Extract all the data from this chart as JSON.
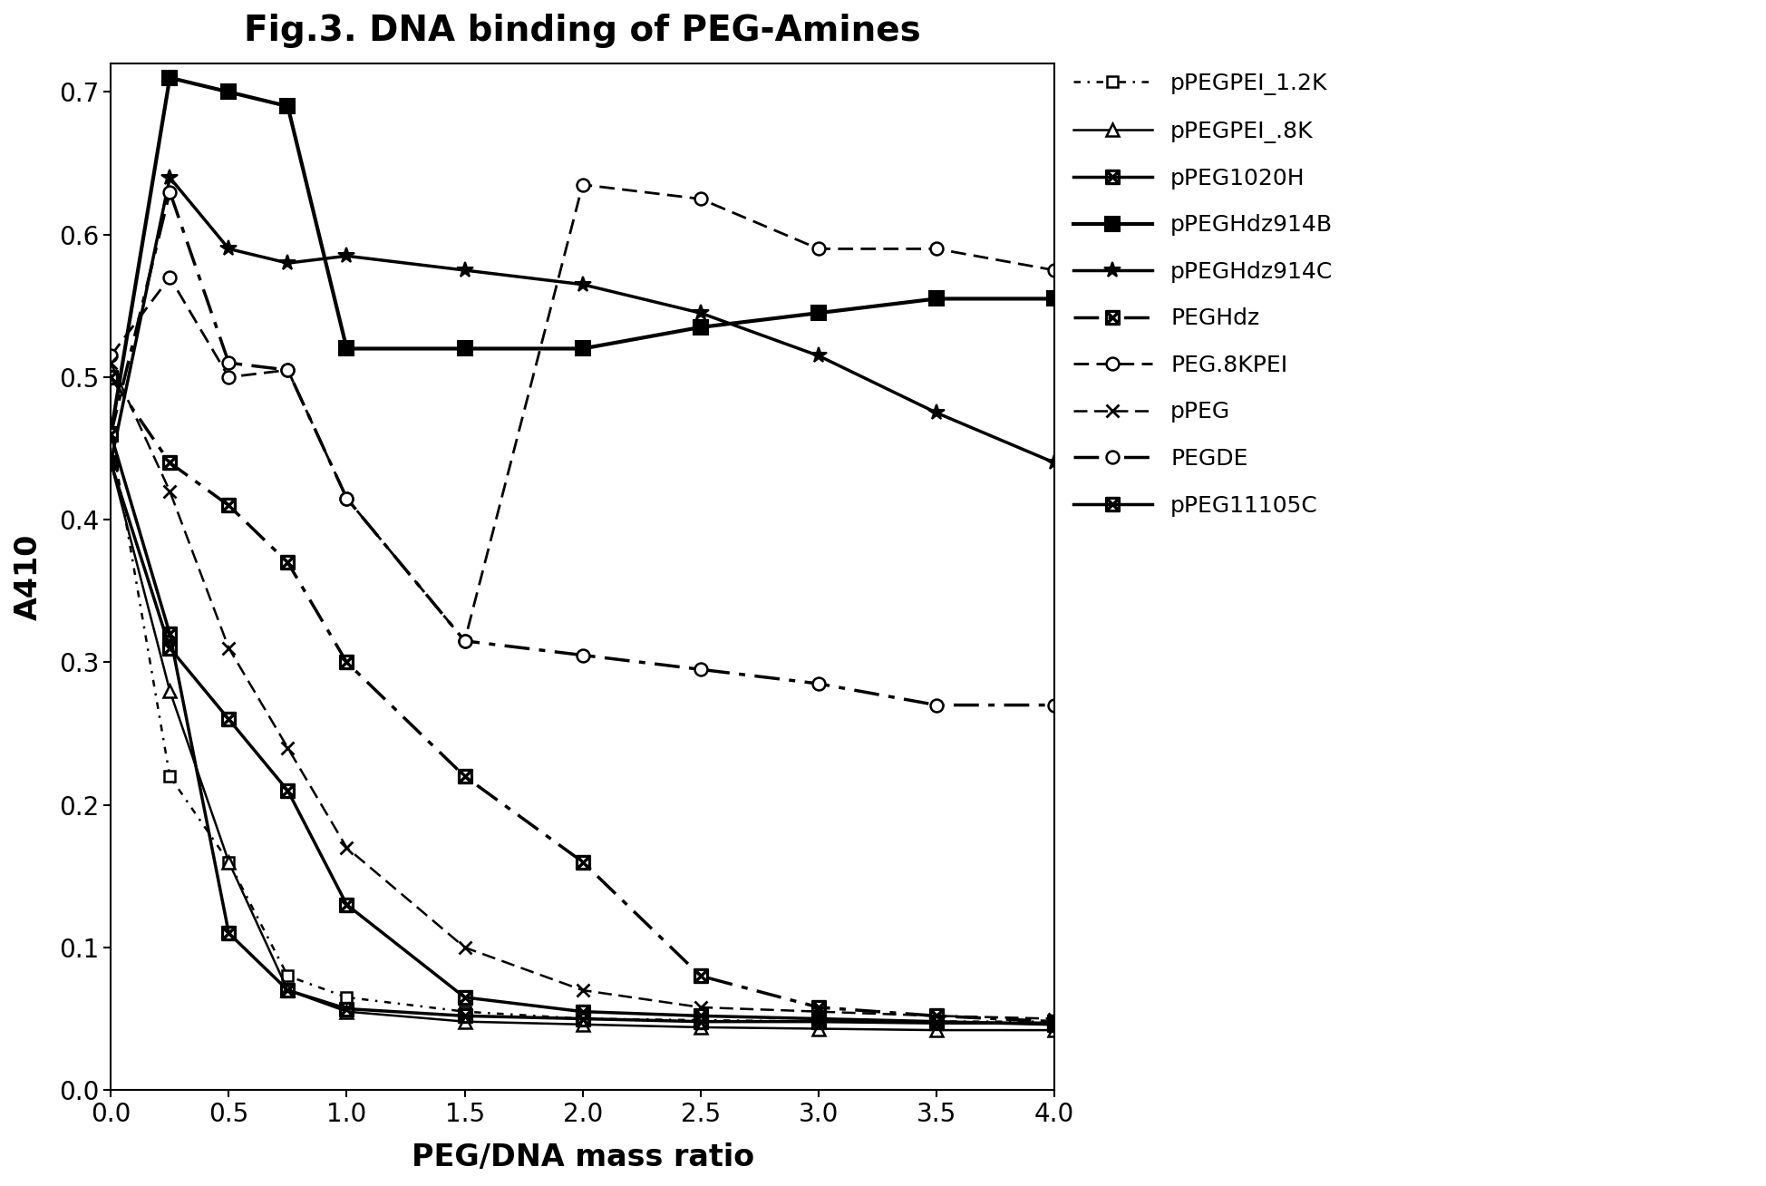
{
  "title": "Fig.3. DNA binding of PEG-Amines",
  "xlabel": "PEG/DNA mass ratio",
  "ylabel": "A410",
  "xlim": [
    0.0,
    4.0
  ],
  "ylim": [
    0.0,
    0.72
  ],
  "yticks": [
    0,
    0.1,
    0.2,
    0.3,
    0.4,
    0.5,
    0.6,
    0.7
  ],
  "xticks": [
    0.0,
    0.5,
    1.0,
    1.5,
    2.0,
    2.5,
    3.0,
    3.5,
    4.0
  ],
  "series": [
    {
      "label": "pPEGPEI_1.2K",
      "linestyle": "dot-dash-short",
      "linewidth": 1.8,
      "marker": "s",
      "ms": 9,
      "mfc": "white",
      "mew": 1.8,
      "x": [
        0.0,
        0.25,
        0.5,
        0.75,
        1.0,
        1.5,
        2.0,
        2.5,
        3.0,
        3.5,
        4.0
      ],
      "y": [
        0.46,
        0.22,
        0.16,
        0.08,
        0.065,
        0.055,
        0.05,
        0.049,
        0.048,
        0.048,
        0.048
      ]
    },
    {
      "label": "pPEGPEI_.8K",
      "linestyle": "solid",
      "linewidth": 1.8,
      "marker": "^",
      "ms": 10,
      "mfc": "white",
      "mew": 1.8,
      "x": [
        0.0,
        0.25,
        0.5,
        0.75,
        1.0,
        1.5,
        2.0,
        2.5,
        3.0,
        3.5,
        4.0
      ],
      "y": [
        0.44,
        0.28,
        0.16,
        0.07,
        0.055,
        0.048,
        0.046,
        0.044,
        0.043,
        0.042,
        0.042
      ]
    },
    {
      "label": "pPEG1020H",
      "linestyle": "solid",
      "linewidth": 2.5,
      "marker": "boxx",
      "ms": 11,
      "mfc": "black",
      "mew": 1.5,
      "x": [
        0.0,
        0.25,
        0.5,
        0.75,
        1.0,
        1.5,
        2.0,
        2.5,
        3.0,
        3.5,
        4.0
      ],
      "y": [
        0.44,
        0.31,
        0.26,
        0.21,
        0.13,
        0.065,
        0.055,
        0.052,
        0.05,
        0.048,
        0.046
      ]
    },
    {
      "label": "pPEGHdz914B",
      "linestyle": "solid",
      "linewidth": 3.0,
      "marker": "s",
      "ms": 11,
      "mfc": "black",
      "mew": 1.5,
      "x": [
        0.0,
        0.25,
        0.5,
        0.75,
        1.0,
        1.5,
        2.0,
        2.5,
        3.0,
        3.5,
        4.0
      ],
      "y": [
        0.46,
        0.71,
        0.7,
        0.69,
        0.52,
        0.52,
        0.52,
        0.535,
        0.545,
        0.555,
        0.555
      ]
    },
    {
      "label": "pPEGHdz914C",
      "linestyle": "solid",
      "linewidth": 2.5,
      "marker": "star",
      "ms": 13,
      "mfc": "black",
      "mew": 1.5,
      "x": [
        0.0,
        0.25,
        0.5,
        0.75,
        1.0,
        1.5,
        2.0,
        2.5,
        3.0,
        3.5,
        4.0
      ],
      "y": [
        0.44,
        0.64,
        0.59,
        0.58,
        0.585,
        0.575,
        0.565,
        0.545,
        0.515,
        0.475,
        0.44
      ]
    },
    {
      "label": "PEGHdz",
      "linestyle": "dashdot",
      "linewidth": 2.5,
      "marker": "boxx",
      "ms": 11,
      "mfc": "black",
      "mew": 1.5,
      "x": [
        0.0,
        0.25,
        0.5,
        0.75,
        1.0,
        1.5,
        2.0,
        2.5,
        3.0,
        3.5,
        4.0
      ],
      "y": [
        0.5,
        0.44,
        0.41,
        0.37,
        0.3,
        0.22,
        0.16,
        0.08,
        0.058,
        0.052,
        0.048
      ]
    },
    {
      "label": "PEG.8KPEI",
      "linestyle": "dashed",
      "linewidth": 2.0,
      "marker": "o",
      "ms": 10,
      "mfc": "white",
      "mew": 1.8,
      "x": [
        0.0,
        0.25,
        0.5,
        0.75,
        1.0,
        1.5,
        2.0,
        2.5,
        3.0,
        3.5,
        4.0
      ],
      "y": [
        0.515,
        0.57,
        0.5,
        0.505,
        0.415,
        0.315,
        0.635,
        0.625,
        0.59,
        0.59,
        0.575
      ]
    },
    {
      "label": "pPEG",
      "linestyle": "dashed",
      "linewidth": 1.8,
      "marker": "x",
      "ms": 10,
      "mfc": "none",
      "mew": 2.0,
      "x": [
        0.0,
        0.25,
        0.5,
        0.75,
        1.0,
        1.5,
        2.0,
        2.5,
        3.0,
        3.5,
        4.0
      ],
      "y": [
        0.51,
        0.42,
        0.31,
        0.24,
        0.17,
        0.1,
        0.07,
        0.058,
        0.055,
        0.052,
        0.05
      ]
    },
    {
      "label": "PEGDE",
      "linestyle": "dashdot",
      "linewidth": 2.5,
      "marker": "o",
      "ms": 10,
      "mfc": "white",
      "mew": 1.8,
      "x": [
        0.0,
        0.25,
        0.5,
        0.75,
        1.0,
        1.5,
        2.0,
        2.5,
        3.0,
        3.5,
        4.0
      ],
      "y": [
        0.46,
        0.63,
        0.51,
        0.505,
        0.415,
        0.315,
        0.305,
        0.295,
        0.285,
        0.27,
        0.27
      ]
    },
    {
      "label": "pPEG11105C",
      "linestyle": "solid",
      "linewidth": 2.5,
      "marker": "boxx",
      "ms": 11,
      "mfc": "black",
      "mew": 1.5,
      "x": [
        0.0,
        0.25,
        0.5,
        0.75,
        1.0,
        1.5,
        2.0,
        2.5,
        3.0,
        3.5,
        4.0
      ],
      "y": [
        0.46,
        0.32,
        0.11,
        0.07,
        0.057,
        0.052,
        0.05,
        0.048,
        0.048,
        0.047,
        0.047
      ]
    }
  ]
}
